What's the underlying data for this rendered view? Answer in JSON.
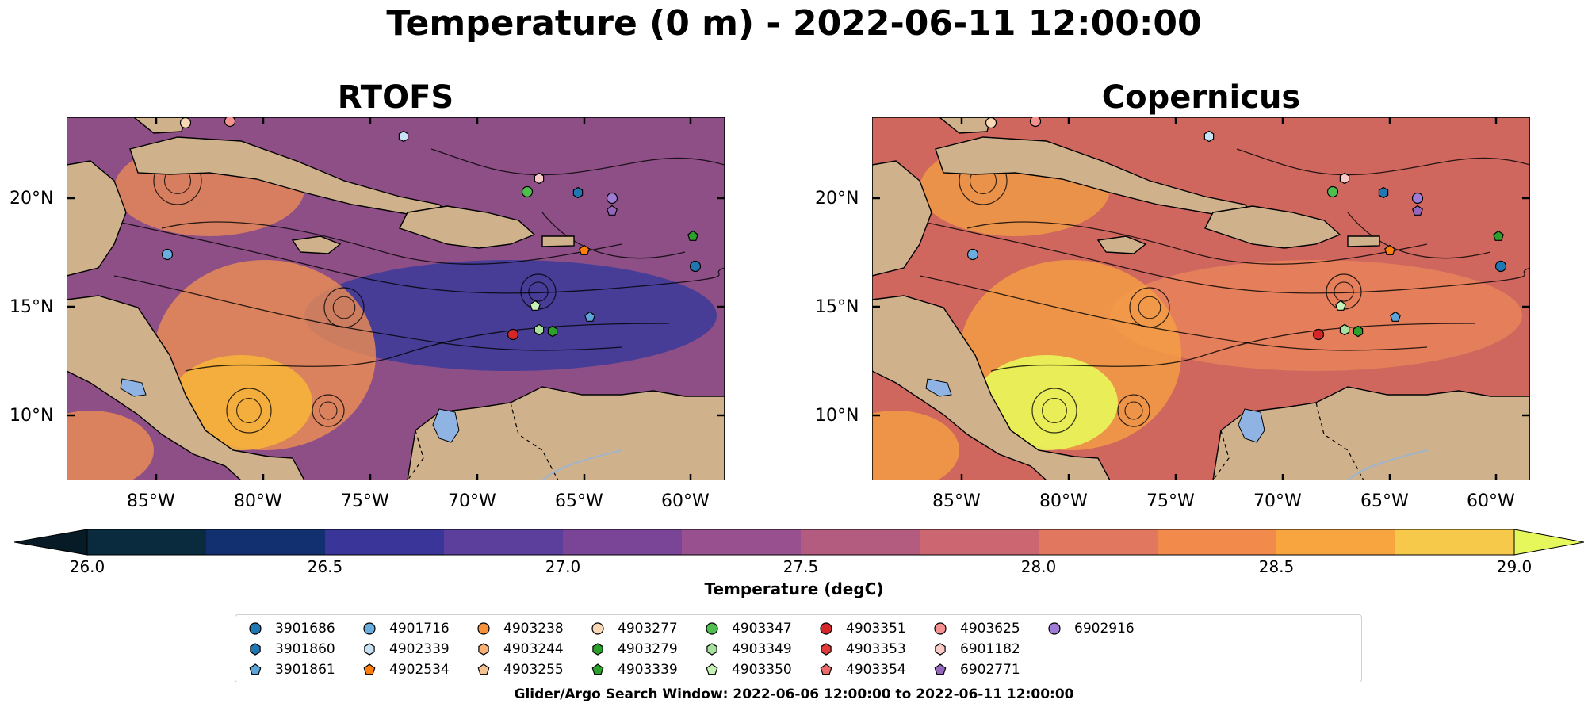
{
  "title": "Temperature (0 m) - 2022-06-11 12:00:00",
  "panels": [
    {
      "title": "RTOFS",
      "colors": {
        "ocean": "#8e4f87",
        "accent": "#3b3a9a",
        "warm": "#ee8d52",
        "hot": "#f6b23a"
      }
    },
    {
      "title": "Copernicus",
      "colors": {
        "ocean": "#d0675f",
        "accent": "#e8825a",
        "warm": "#f4a043",
        "hot": "#e8f65a"
      }
    }
  ],
  "lon_ticks": [
    "85°W",
    "80°W",
    "75°W",
    "70°W",
    "65°W",
    "60°W"
  ],
  "lat_ticks": [
    "20°N",
    "15°N",
    "10°N"
  ],
  "land_color": "#cfb28b",
  "colorbar": {
    "label": "Temperature (degC)",
    "ticks": [
      "26.0",
      "26.5",
      "27.0",
      "27.5",
      "28.0",
      "28.5",
      "29.0"
    ],
    "colors": [
      "#0a2a3e",
      "#12306f",
      "#3a3599",
      "#5c3f9c",
      "#7a4596",
      "#98508e",
      "#b45c80",
      "#cc6670",
      "#e2775f",
      "#f28a4b",
      "#f8a43f",
      "#f7c94a"
    ],
    "under_color": "#061b26",
    "over_color": "#e6f75c"
  },
  "legend": [
    {
      "id": "3901686",
      "marker": "circle",
      "color": "#1f77b4"
    },
    {
      "id": "3901860",
      "marker": "hexagon",
      "color": "#1f77b4"
    },
    {
      "id": "3901861",
      "marker": "pentagon",
      "color": "#5da4db"
    },
    {
      "id": "4901716",
      "marker": "circle",
      "color": "#6aaee0"
    },
    {
      "id": "4902339",
      "marker": "hexagon",
      "color": "#c7e1f5"
    },
    {
      "id": "4902534",
      "marker": "pentagon",
      "color": "#ff7f0e"
    },
    {
      "id": "4903238",
      "marker": "circle",
      "color": "#f7923a"
    },
    {
      "id": "4903244",
      "marker": "hexagon",
      "color": "#fbb172"
    },
    {
      "id": "4903255",
      "marker": "pentagon",
      "color": "#f7c292"
    },
    {
      "id": "4903277",
      "marker": "circle",
      "color": "#fbd8b5"
    },
    {
      "id": "4903279",
      "marker": "hexagon",
      "color": "#2ca02c"
    },
    {
      "id": "4903339",
      "marker": "pentagon",
      "color": "#2ca02c"
    },
    {
      "id": "4903347",
      "marker": "circle",
      "color": "#4fbd4f"
    },
    {
      "id": "4903349",
      "marker": "hexagon",
      "color": "#a7e09f"
    },
    {
      "id": "4903350",
      "marker": "pentagon",
      "color": "#c6f2b8"
    },
    {
      "id": "4903351",
      "marker": "circle",
      "color": "#d62728"
    },
    {
      "id": "4903353",
      "marker": "hexagon",
      "color": "#e03a3a"
    },
    {
      "id": "4903354",
      "marker": "pentagon",
      "color": "#ec6b6b"
    },
    {
      "id": "4903625",
      "marker": "circle",
      "color": "#f49292"
    },
    {
      "id": "6901182",
      "marker": "hexagon",
      "color": "#fbc9c6"
    },
    {
      "id": "6902771",
      "marker": "pentagon",
      "color": "#9467bd"
    },
    {
      "id": "6902916",
      "marker": "circle",
      "color": "#9f7bd6"
    }
  ],
  "search_window": "Glider/Argo Search Window: 2022-06-06 12:00:00 to 2022-06-11 12:00:00"
}
